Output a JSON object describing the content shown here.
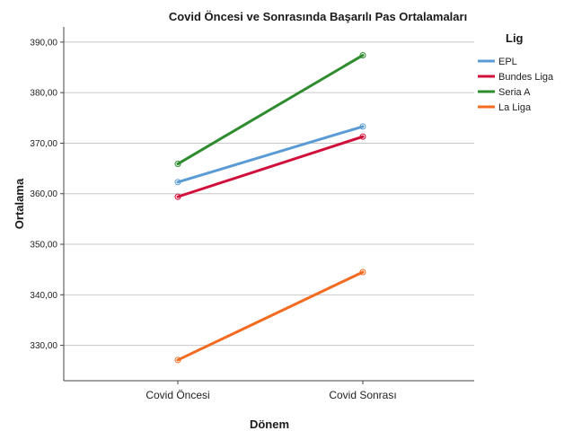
{
  "chart_data": {
    "type": "line",
    "title": "Covid Öncesi ve Sonrasında Başarılı Pas Ortalamaları",
    "xlabel": "Dönem",
    "ylabel": "Ortalama",
    "categories": [
      "Covid Öncesi",
      "Covid Sonrası"
    ],
    "ylim": [
      323,
      393
    ],
    "yticks": [
      330,
      340,
      350,
      360,
      370,
      380,
      390
    ],
    "ytick_labels": [
      "330,00",
      "340,00",
      "350,00",
      "360,00",
      "370,00",
      "380,00",
      "390,00"
    ],
    "grid": "horizontal",
    "legend": {
      "title": "Lig",
      "placement": "right"
    },
    "series": [
      {
        "name": "EPL",
        "values": [
          362.3,
          373.3
        ],
        "color": "#5b9bd5"
      },
      {
        "name": "Bundes Liga",
        "values": [
          359.4,
          371.3
        ],
        "color": "#d0103a"
      },
      {
        "name": "Seria A",
        "values": [
          365.9,
          387.4
        ],
        "color": "#2e8b2e"
      },
      {
        "name": "La Liga",
        "values": [
          327.1,
          344.5
        ],
        "color": "#f26b21"
      }
    ]
  }
}
